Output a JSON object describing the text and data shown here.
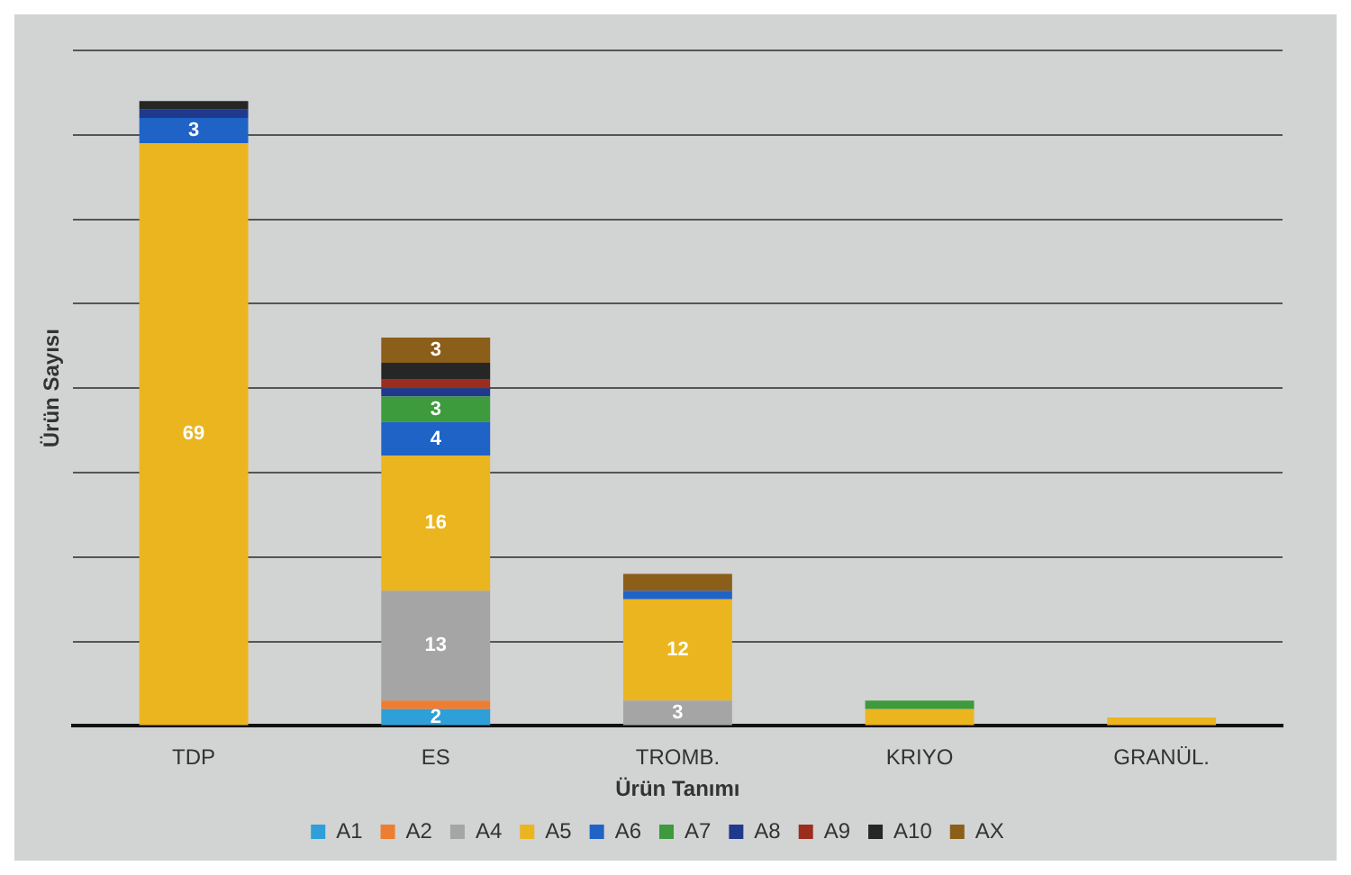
{
  "chart_data": {
    "type": "bar",
    "stacked": true,
    "xlabel": "Ürün Tanımı",
    "ylabel": "Ürün Sayısı",
    "categories": [
      "TDP",
      "ES",
      "TROMB.",
      "KRIYO",
      "GRANÜL."
    ],
    "series": [
      {
        "name": "A1",
        "color": "#2e9fd8",
        "values": [
          0,
          2,
          0,
          0,
          null
        ],
        "value_labels": [
          null,
          "2",
          null,
          null,
          null
        ]
      },
      {
        "name": "A2",
        "color": "#ed7d31",
        "values": [
          null,
          1,
          null,
          null,
          null
        ]
      },
      {
        "name": "A4",
        "color": "#a5a5a5",
        "values": [
          null,
          13,
          3,
          null,
          null
        ],
        "value_labels": [
          null,
          "13",
          "3",
          null,
          null
        ]
      },
      {
        "name": "A5",
        "color": "#ebb51f",
        "values": [
          69,
          16,
          12,
          2,
          1
        ],
        "value_labels": [
          "69",
          "16",
          "12",
          null,
          null
        ]
      },
      {
        "name": "A6",
        "color": "#1f63c6",
        "values": [
          3,
          4,
          1,
          null,
          null
        ],
        "value_labels": [
          "3",
          "4",
          null,
          null,
          null
        ]
      },
      {
        "name": "A7",
        "color": "#3d9a3d",
        "values": [
          null,
          3,
          null,
          1,
          null
        ],
        "value_labels": [
          null,
          "3",
          null,
          null,
          null
        ]
      },
      {
        "name": "A8",
        "color": "#1f3a8c",
        "values": [
          1,
          1,
          null,
          null,
          null
        ]
      },
      {
        "name": "A9",
        "color": "#9b2d1f",
        "values": [
          null,
          1,
          null,
          null,
          null
        ]
      },
      {
        "name": "A10",
        "color": "#262626",
        "values": [
          1,
          2,
          null,
          null,
          null
        ]
      },
      {
        "name": "AX",
        "color": "#8b5e1a",
        "values": [
          null,
          3,
          2,
          null,
          null
        ],
        "value_labels": [
          null,
          "3",
          null,
          null,
          null
        ]
      }
    ],
    "ylim": [
      0,
      80
    ],
    "yticks": [
      {
        "value": 0,
        "label": null
      },
      {
        "value": 10,
        "label": null
      },
      {
        "value": 20,
        "label": null
      },
      {
        "value": 30,
        "label": null
      },
      {
        "value": 40,
        "label": null
      },
      {
        "value": 50,
        "label": null
      },
      {
        "value": 60,
        "label": null
      },
      {
        "value": 70,
        "label": null
      },
      {
        "value": 80,
        "label": null
      }
    ],
    "tick_labels": "x",
    "grid": "y",
    "legend": "bottom"
  }
}
